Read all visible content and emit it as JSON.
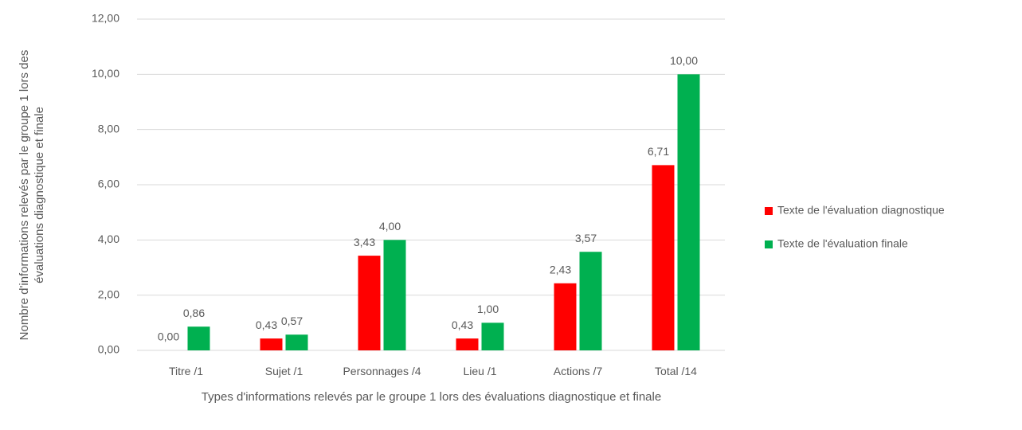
{
  "chart_data": {
    "type": "bar",
    "y_label": "Nombre d'informations relevés par le groupe 1 lors des évaluations diagnostique et finale",
    "x_label": "Types d'informations relevés par le groupe 1 lors des évaluations diagnostique et finale",
    "categories": [
      "Titre /1",
      "Sujet /1",
      "Personnages /4",
      "Lieu /1",
      "Actions /7",
      "Total /14"
    ],
    "series": [
      {
        "name": "Texte de l'évaluation diagnostique",
        "color": "#ff0000",
        "values": [
          0,
          0.43,
          3.43,
          0.43,
          2.43,
          6.71
        ],
        "value_labels": [
          "0,00",
          "0,43",
          "3,43",
          "0,43",
          "2,43",
          "6,71"
        ]
      },
      {
        "name": "Texte de l'évaluation finale",
        "color": "#00b050",
        "values": [
          0.86,
          0.57,
          4.0,
          1.0,
          3.57,
          10.0
        ],
        "value_labels": [
          "0,86",
          "0,57",
          "4,00",
          "1,00",
          "3,57",
          "10,00"
        ]
      }
    ],
    "ylim": [
      0,
      12
    ],
    "yticks": [
      {
        "value": 0,
        "label": "0,00"
      },
      {
        "value": 2,
        "label": "2,00"
      },
      {
        "value": 4,
        "label": "4,00"
      },
      {
        "value": 6,
        "label": "6,00"
      },
      {
        "value": 8,
        "label": "8,00"
      },
      {
        "value": 10,
        "label": "10,00"
      },
      {
        "value": 12,
        "label": "12,00"
      }
    ],
    "grid": true,
    "legend": "right"
  }
}
